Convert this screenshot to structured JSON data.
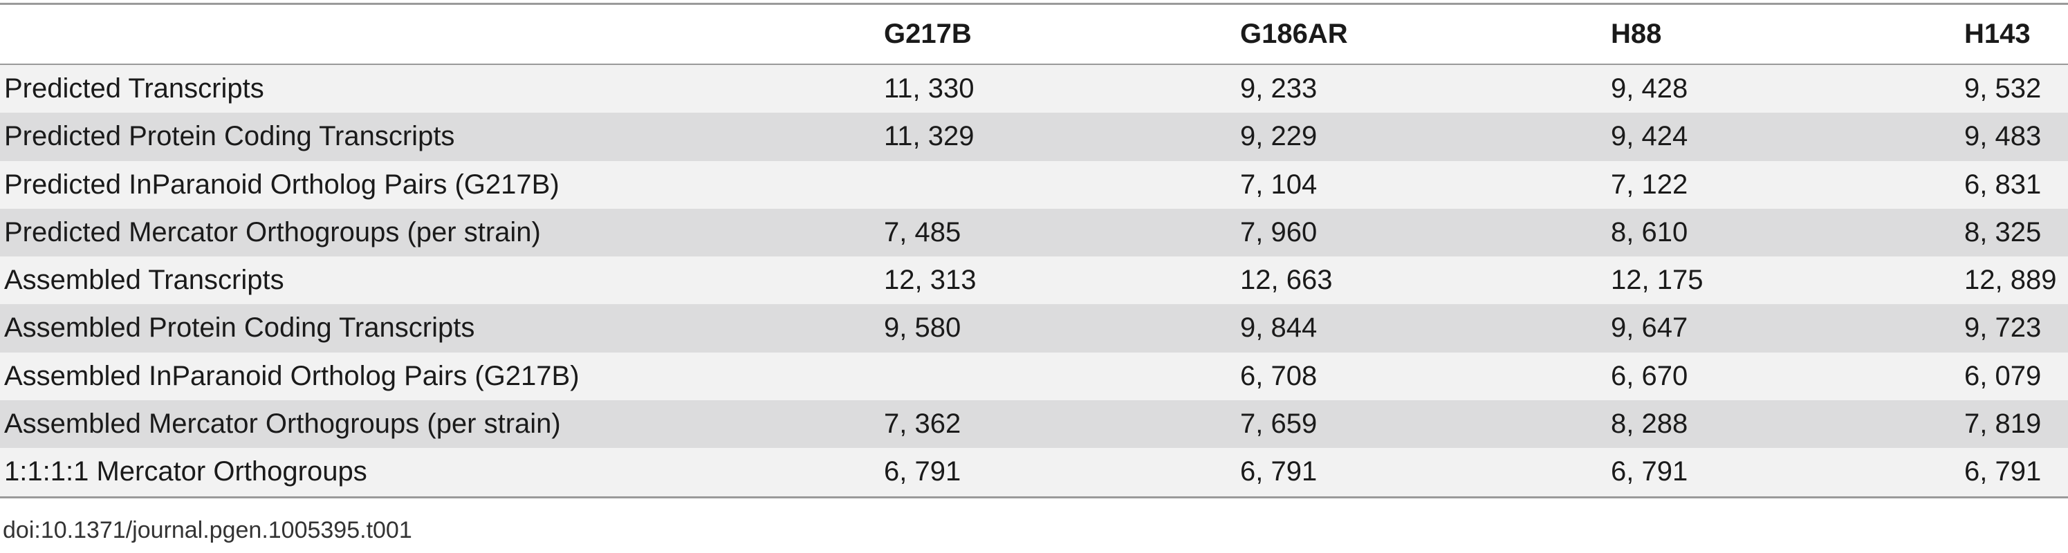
{
  "table": {
    "columns": [
      "",
      "G217B",
      "G186AR",
      "H88",
      "H143"
    ],
    "rows": [
      {
        "label": "Predicted Transcripts",
        "values": [
          "11, 330",
          "9, 233",
          "9, 428",
          "9, 532"
        ]
      },
      {
        "label": "Predicted Protein Coding Transcripts",
        "values": [
          "11, 329",
          "9, 229",
          "9, 424",
          "9, 483"
        ]
      },
      {
        "label": "Predicted InParanoid Ortholog Pairs (G217B)",
        "values": [
          "",
          "7, 104",
          "7, 122",
          "6, 831"
        ]
      },
      {
        "label": "Predicted Mercator Orthogroups (per strain)",
        "values": [
          "7, 485",
          "7, 960",
          "8, 610",
          "8, 325"
        ]
      },
      {
        "label": "Assembled Transcripts",
        "values": [
          "12, 313",
          "12, 663",
          "12, 175",
          "12, 889"
        ]
      },
      {
        "label": "Assembled Protein Coding Transcripts",
        "values": [
          "9, 580",
          "9, 844",
          "9, 647",
          "9, 723"
        ]
      },
      {
        "label": "Assembled InParanoid Ortholog Pairs (G217B)",
        "values": [
          "",
          "6, 708",
          "6, 670",
          "6, 079"
        ]
      },
      {
        "label": "Assembled Mercator Orthogroups (per strain)",
        "values": [
          "7, 362",
          "7, 659",
          "8, 288",
          "7, 819"
        ]
      },
      {
        "label": "1:1:1:1 Mercator Orthogroups",
        "values": [
          "6, 791",
          "6, 791",
          "6, 791",
          "6, 791"
        ]
      }
    ]
  },
  "doi": "doi:10.1371/journal.pgen.1005395.t001",
  "colors": {
    "row_light": "#f2f2f2",
    "row_dark": "#dcdcdd",
    "rule": "#9a9a9a",
    "text": "#1a1a1a"
  }
}
